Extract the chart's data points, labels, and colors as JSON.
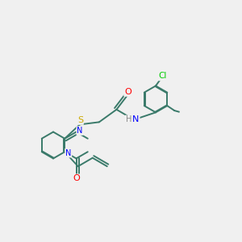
{
  "background_color": "#f0f0f0",
  "colors": {
    "bond": "#3a7a6a",
    "N": "#0000ff",
    "O": "#ff0000",
    "S": "#ccaa00",
    "Cl": "#00cc00",
    "H": "#888888"
  },
  "layout": {
    "xlim": [
      0,
      10
    ],
    "ylim": [
      0,
      10
    ]
  }
}
